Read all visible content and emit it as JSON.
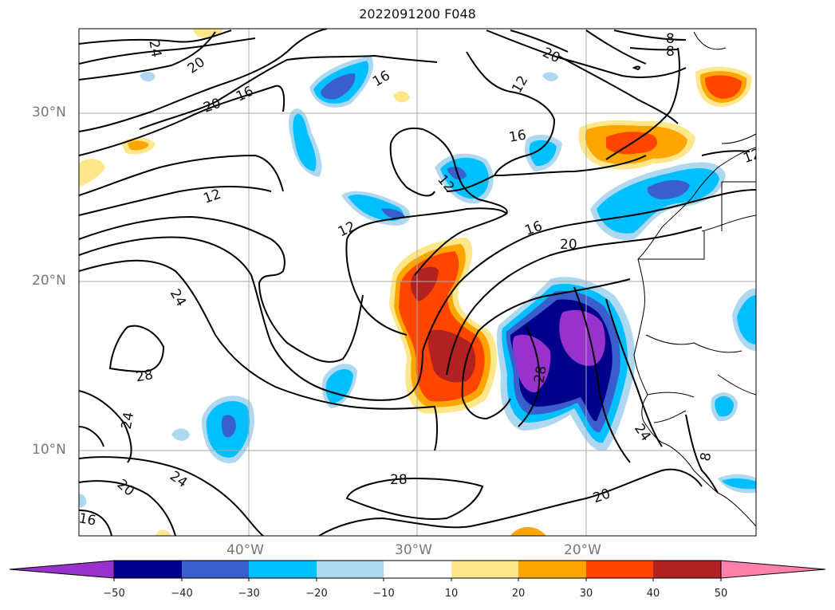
{
  "title": "2022091200 F048",
  "lat_labels": [
    "30°N",
    "20°N",
    "10°N"
  ],
  "lon_labels": [
    "40°W",
    "30°W",
    "20°W"
  ],
  "colorbar": {
    "ticks": [
      "−50",
      "−40",
      "−30",
      "−20",
      "−10",
      "10",
      "20",
      "30",
      "40",
      "50"
    ],
    "colors": [
      "#9932cc",
      "#00008b",
      "#3a5fcd",
      "#00bfff",
      "#add8f0",
      "#ffffff",
      "#fde78a",
      "#ffa500",
      "#ff4500",
      "#b22222",
      "#ff82ab"
    ]
  },
  "contour_labels": [
    "24",
    "20",
    "20",
    "16",
    "16",
    "12",
    "12",
    "8",
    "8",
    "16",
    "20",
    "12",
    "12",
    "16",
    "20",
    "24",
    "28",
    "24",
    "20",
    "28",
    "24",
    "16",
    "20",
    "28",
    "24",
    "8",
    "12"
  ],
  "fill_colors": {
    "purple": "#9932cc",
    "navy": "#00008b",
    "royal": "#3a5fcd",
    "sky": "#00bfff",
    "pale": "#add8f0",
    "yellow": "#fde78a",
    "orange": "#ffa500",
    "red": "#ff4500",
    "darkred": "#b22222"
  }
}
